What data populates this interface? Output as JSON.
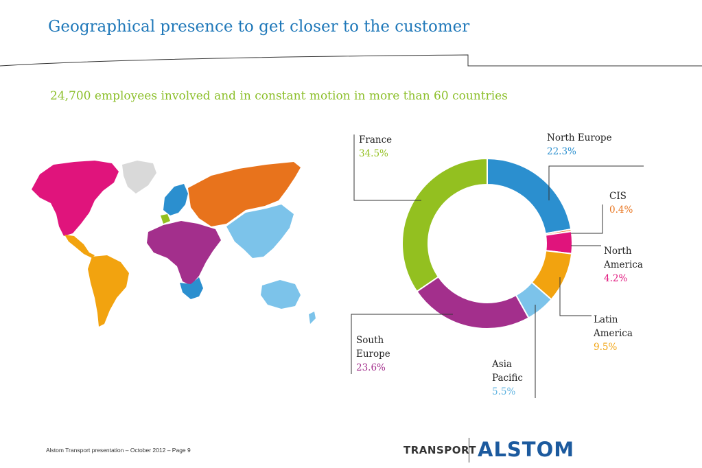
{
  "header": {
    "title": "Geographical presence to get closer to the customer",
    "subtitle": "24,700 employees involved and in constant motion in more than 60 countries"
  },
  "chart_data": {
    "type": "pie",
    "variant": "donut",
    "categories": [
      "North Europe",
      "CIS",
      "North America",
      "Latin America",
      "Asia Pacific",
      "South Europe",
      "France"
    ],
    "values": [
      22.3,
      0.4,
      4.2,
      9.5,
      5.5,
      23.6,
      34.5
    ],
    "labels": [
      "22.3%",
      "0.4%",
      "4.2%",
      "9.5%",
      "5.5%",
      "23.6%",
      "34.5%"
    ],
    "colors": [
      "#2b8fcf",
      "#e8731c",
      "#e0147c",
      "#f2a30f",
      "#7cc3ea",
      "#a32f8c",
      "#93c020"
    ]
  },
  "label_text": {
    "north_europe": {
      "name": "North Europe",
      "pct": "22.3%"
    },
    "cis": {
      "name": "CIS",
      "pct": "0.4%"
    },
    "north_america": {
      "line1": "North",
      "line2": "America",
      "pct": "4.2%"
    },
    "latin_america": {
      "line1": "Latin",
      "line2": "America",
      "pct": "9.5%"
    },
    "asia_pacific": {
      "line1": "Asia",
      "line2": "Pacific",
      "pct": "5.5%"
    },
    "south_europe": {
      "line1": "South",
      "line2": "Europe",
      "pct": "23.6%"
    },
    "france": {
      "name": "France",
      "pct": "34.5%"
    }
  },
  "map": {
    "region_colors": {
      "north_america": "#e0147c",
      "greenland": "#d9d9d9",
      "latin_america": "#f2a30f",
      "north_europe": "#2b8fcf",
      "france": "#93c020",
      "cis": "#e8731c",
      "south_europe_africa": "#a32f8c",
      "asia_pacific": "#7cc3ea",
      "southern_africa": "#2b8fcf"
    }
  },
  "footer": {
    "text": "Alstom Transport presentation – October 2012 – Page 9"
  },
  "brand": {
    "division": "TRANSPORT",
    "company": "ALSTOM"
  }
}
